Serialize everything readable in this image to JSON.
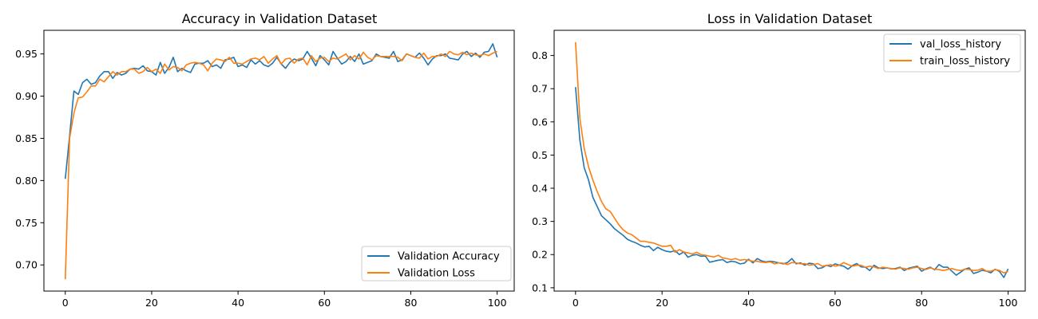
{
  "chart_data": [
    {
      "type": "line",
      "title": "Accuracy in Validation Dataset",
      "xlabel": "",
      "ylabel": "",
      "xlim": [
        -4.95,
        103.95
      ],
      "ylim": [
        0.669,
        0.978
      ],
      "xticks": [
        0,
        20,
        40,
        60,
        80,
        100
      ],
      "yticks": [
        0.7,
        0.75,
        0.8,
        0.85,
        0.9,
        0.95
      ],
      "ytick_labels": [
        "0.70",
        "0.75",
        "0.80",
        "0.85",
        "0.90",
        "0.95"
      ],
      "grid": false,
      "legend": "lower-right",
      "series": [
        {
          "name": "Validation Accuracy",
          "color": "#1f77b4",
          "values": [
            0.802,
            0.853,
            0.906,
            0.902,
            0.916,
            0.92,
            0.914,
            0.916,
            0.924,
            0.929,
            0.929,
            0.921,
            0.928,
            0.925,
            0.927,
            0.932,
            0.933,
            0.932,
            0.936,
            0.93,
            0.929,
            0.925,
            0.94,
            0.927,
            0.934,
            0.946,
            0.929,
            0.933,
            0.93,
            0.928,
            0.938,
            0.939,
            0.939,
            0.942,
            0.935,
            0.937,
            0.933,
            0.943,
            0.944,
            0.946,
            0.935,
            0.937,
            0.934,
            0.943,
            0.938,
            0.942,
            0.937,
            0.935,
            0.939,
            0.946,
            0.938,
            0.933,
            0.94,
            0.944,
            0.942,
            0.944,
            0.953,
            0.945,
            0.936,
            0.948,
            0.943,
            0.937,
            0.953,
            0.945,
            0.938,
            0.941,
            0.947,
            0.941,
            0.95,
            0.938,
            0.94,
            0.942,
            0.95,
            0.947,
            0.946,
            0.945,
            0.953,
            0.941,
            0.943,
            0.95,
            0.948,
            0.946,
            0.951,
            0.945,
            0.937,
            0.944,
            0.948,
            0.948,
            0.95,
            0.945,
            0.944,
            0.943,
            0.95,
            0.953,
            0.947,
            0.951,
            0.946,
            0.952,
            0.953,
            0.962,
            0.946
          ]
        },
        {
          "name": "Validation Loss",
          "color": "#ff7f0e",
          "values": [
            0.683,
            0.85,
            0.88,
            0.898,
            0.899,
            0.905,
            0.912,
            0.912,
            0.92,
            0.917,
            0.923,
            0.929,
            0.925,
            0.929,
            0.929,
            0.932,
            0.932,
            0.927,
            0.929,
            0.934,
            0.929,
            0.932,
            0.927,
            0.938,
            0.931,
            0.935,
            0.934,
            0.93,
            0.937,
            0.939,
            0.94,
            0.939,
            0.937,
            0.93,
            0.939,
            0.944,
            0.943,
            0.941,
            0.946,
            0.939,
            0.939,
            0.938,
            0.941,
            0.944,
            0.945,
            0.943,
            0.947,
            0.939,
            0.944,
            0.948,
            0.938,
            0.944,
            0.945,
            0.939,
            0.944,
            0.945,
            0.937,
            0.948,
            0.941,
            0.945,
            0.946,
            0.941,
            0.945,
            0.944,
            0.947,
            0.95,
            0.943,
            0.948,
            0.944,
            0.952,
            0.946,
            0.943,
            0.948,
            0.947,
            0.947,
            0.947,
            0.947,
            0.946,
            0.942,
            0.95,
            0.948,
            0.946,
            0.945,
            0.951,
            0.944,
            0.947,
            0.947,
            0.95,
            0.947,
            0.953,
            0.95,
            0.949,
            0.952,
            0.949,
            0.951,
            0.949,
            0.948,
            0.95,
            0.948,
            0.951,
            0.953
          ]
        }
      ]
    },
    {
      "type": "line",
      "title": "Loss in Validation Dataset",
      "xlabel": "",
      "ylabel": "",
      "xlim": [
        -4.95,
        103.95
      ],
      "ylim": [
        0.09,
        0.876
      ],
      "xticks": [
        0,
        20,
        40,
        60,
        80,
        100
      ],
      "yticks": [
        0.1,
        0.2,
        0.3,
        0.4,
        0.5,
        0.6,
        0.7,
        0.8
      ],
      "ytick_labels": [
        "0.1",
        "0.2",
        "0.3",
        "0.4",
        "0.5",
        "0.6",
        "0.7",
        "0.8"
      ],
      "grid": false,
      "legend": "top-right",
      "series": [
        {
          "name": "val_loss_history",
          "color": "#1f77b4",
          "values": [
            0.705,
            0.545,
            0.462,
            0.425,
            0.373,
            0.345,
            0.317,
            0.305,
            0.293,
            0.278,
            0.268,
            0.258,
            0.246,
            0.24,
            0.235,
            0.228,
            0.223,
            0.225,
            0.212,
            0.222,
            0.215,
            0.21,
            0.208,
            0.212,
            0.2,
            0.208,
            0.192,
            0.198,
            0.2,
            0.195,
            0.196,
            0.177,
            0.18,
            0.183,
            0.185,
            0.176,
            0.18,
            0.178,
            0.172,
            0.174,
            0.186,
            0.175,
            0.188,
            0.181,
            0.178,
            0.18,
            0.178,
            0.175,
            0.172,
            0.176,
            0.188,
            0.172,
            0.175,
            0.168,
            0.174,
            0.172,
            0.158,
            0.16,
            0.168,
            0.164,
            0.172,
            0.168,
            0.165,
            0.156,
            0.167,
            0.173,
            0.163,
            0.162,
            0.152,
            0.168,
            0.16,
            0.158,
            0.16,
            0.157,
            0.158,
            0.162,
            0.152,
            0.159,
            0.162,
            0.165,
            0.15,
            0.157,
            0.162,
            0.154,
            0.17,
            0.162,
            0.162,
            0.15,
            0.138,
            0.147,
            0.156,
            0.16,
            0.143,
            0.147,
            0.153,
            0.15,
            0.145,
            0.156,
            0.149,
            0.131,
            0.157
          ]
        },
        {
          "name": "train_loss_history",
          "color": "#ff7f0e",
          "values": [
            0.84,
            0.61,
            0.52,
            0.465,
            0.425,
            0.39,
            0.36,
            0.338,
            0.33,
            0.31,
            0.29,
            0.275,
            0.265,
            0.26,
            0.25,
            0.24,
            0.24,
            0.237,
            0.235,
            0.23,
            0.225,
            0.225,
            0.228,
            0.207,
            0.215,
            0.208,
            0.205,
            0.202,
            0.207,
            0.2,
            0.198,
            0.195,
            0.193,
            0.198,
            0.19,
            0.188,
            0.185,
            0.188,
            0.183,
            0.185,
            0.183,
            0.18,
            0.18,
            0.177,
            0.176,
            0.178,
            0.172,
            0.175,
            0.174,
            0.17,
            0.176,
            0.175,
            0.172,
            0.173,
            0.168,
            0.17,
            0.173,
            0.165,
            0.167,
            0.17,
            0.165,
            0.168,
            0.176,
            0.17,
            0.165,
            0.168,
            0.168,
            0.162,
            0.165,
            0.163,
            0.158,
            0.162,
            0.16,
            0.158,
            0.156,
            0.16,
            0.158,
            0.156,
            0.16,
            0.162,
            0.158,
            0.155,
            0.16,
            0.156,
            0.155,
            0.152,
            0.155,
            0.158,
            0.154,
            0.152,
            0.156,
            0.155,
            0.152,
            0.153,
            0.158,
            0.15,
            0.15,
            0.155,
            0.152,
            0.145,
            0.149
          ]
        }
      ]
    }
  ]
}
